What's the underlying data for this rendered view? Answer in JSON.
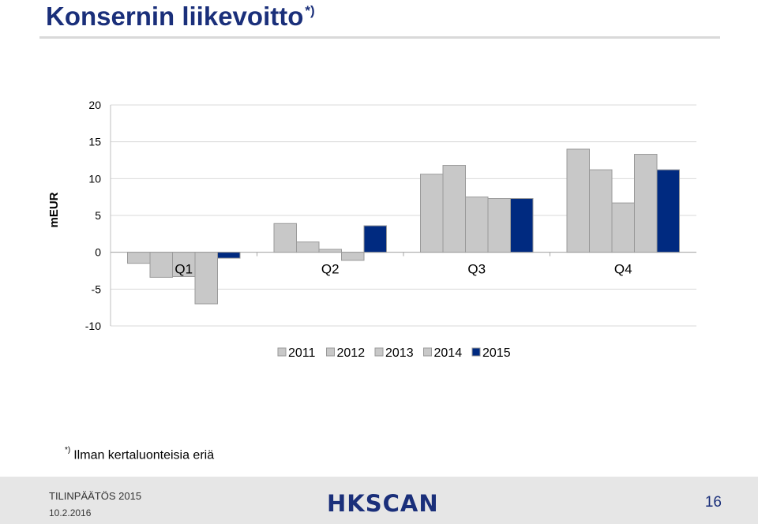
{
  "slide": {
    "title": "Konsernin liikevoitto",
    "title_sup": "*)",
    "footnote_sup": "*)",
    "footnote": "Ilman kertaluonteisia eriä"
  },
  "footer": {
    "line1": "TILINPÄÄTÖS 2015",
    "line2": "10.2.2016",
    "logo": "HKSCAN",
    "page_number": "16"
  },
  "colors": {
    "title": "#1a2f7a",
    "bar_gray": "#c8c8c8",
    "bar_highlight": "#002a80",
    "grid": "#d9d9d9"
  },
  "chart_data": {
    "type": "bar",
    "categories": [
      "Q1",
      "Q2",
      "Q3",
      "Q4"
    ],
    "series": [
      {
        "name": "2011",
        "values": [
          -1.5,
          3.9,
          10.6,
          14.0
        ]
      },
      {
        "name": "2012",
        "values": [
          -3.4,
          1.4,
          11.8,
          11.2
        ]
      },
      {
        "name": "2013",
        "values": [
          -3.3,
          0.4,
          7.5,
          6.7
        ]
      },
      {
        "name": "2014",
        "values": [
          -7.0,
          -1.1,
          7.3,
          13.3
        ]
      },
      {
        "name": "2015",
        "values": [
          -0.8,
          3.6,
          7.3,
          11.2
        ]
      }
    ],
    "ylabel": "mEUR",
    "ylim": [
      -10,
      20
    ],
    "yticks": [
      20,
      15,
      10,
      5,
      0,
      -5,
      -10
    ],
    "grid": true,
    "legend": "bottom"
  }
}
